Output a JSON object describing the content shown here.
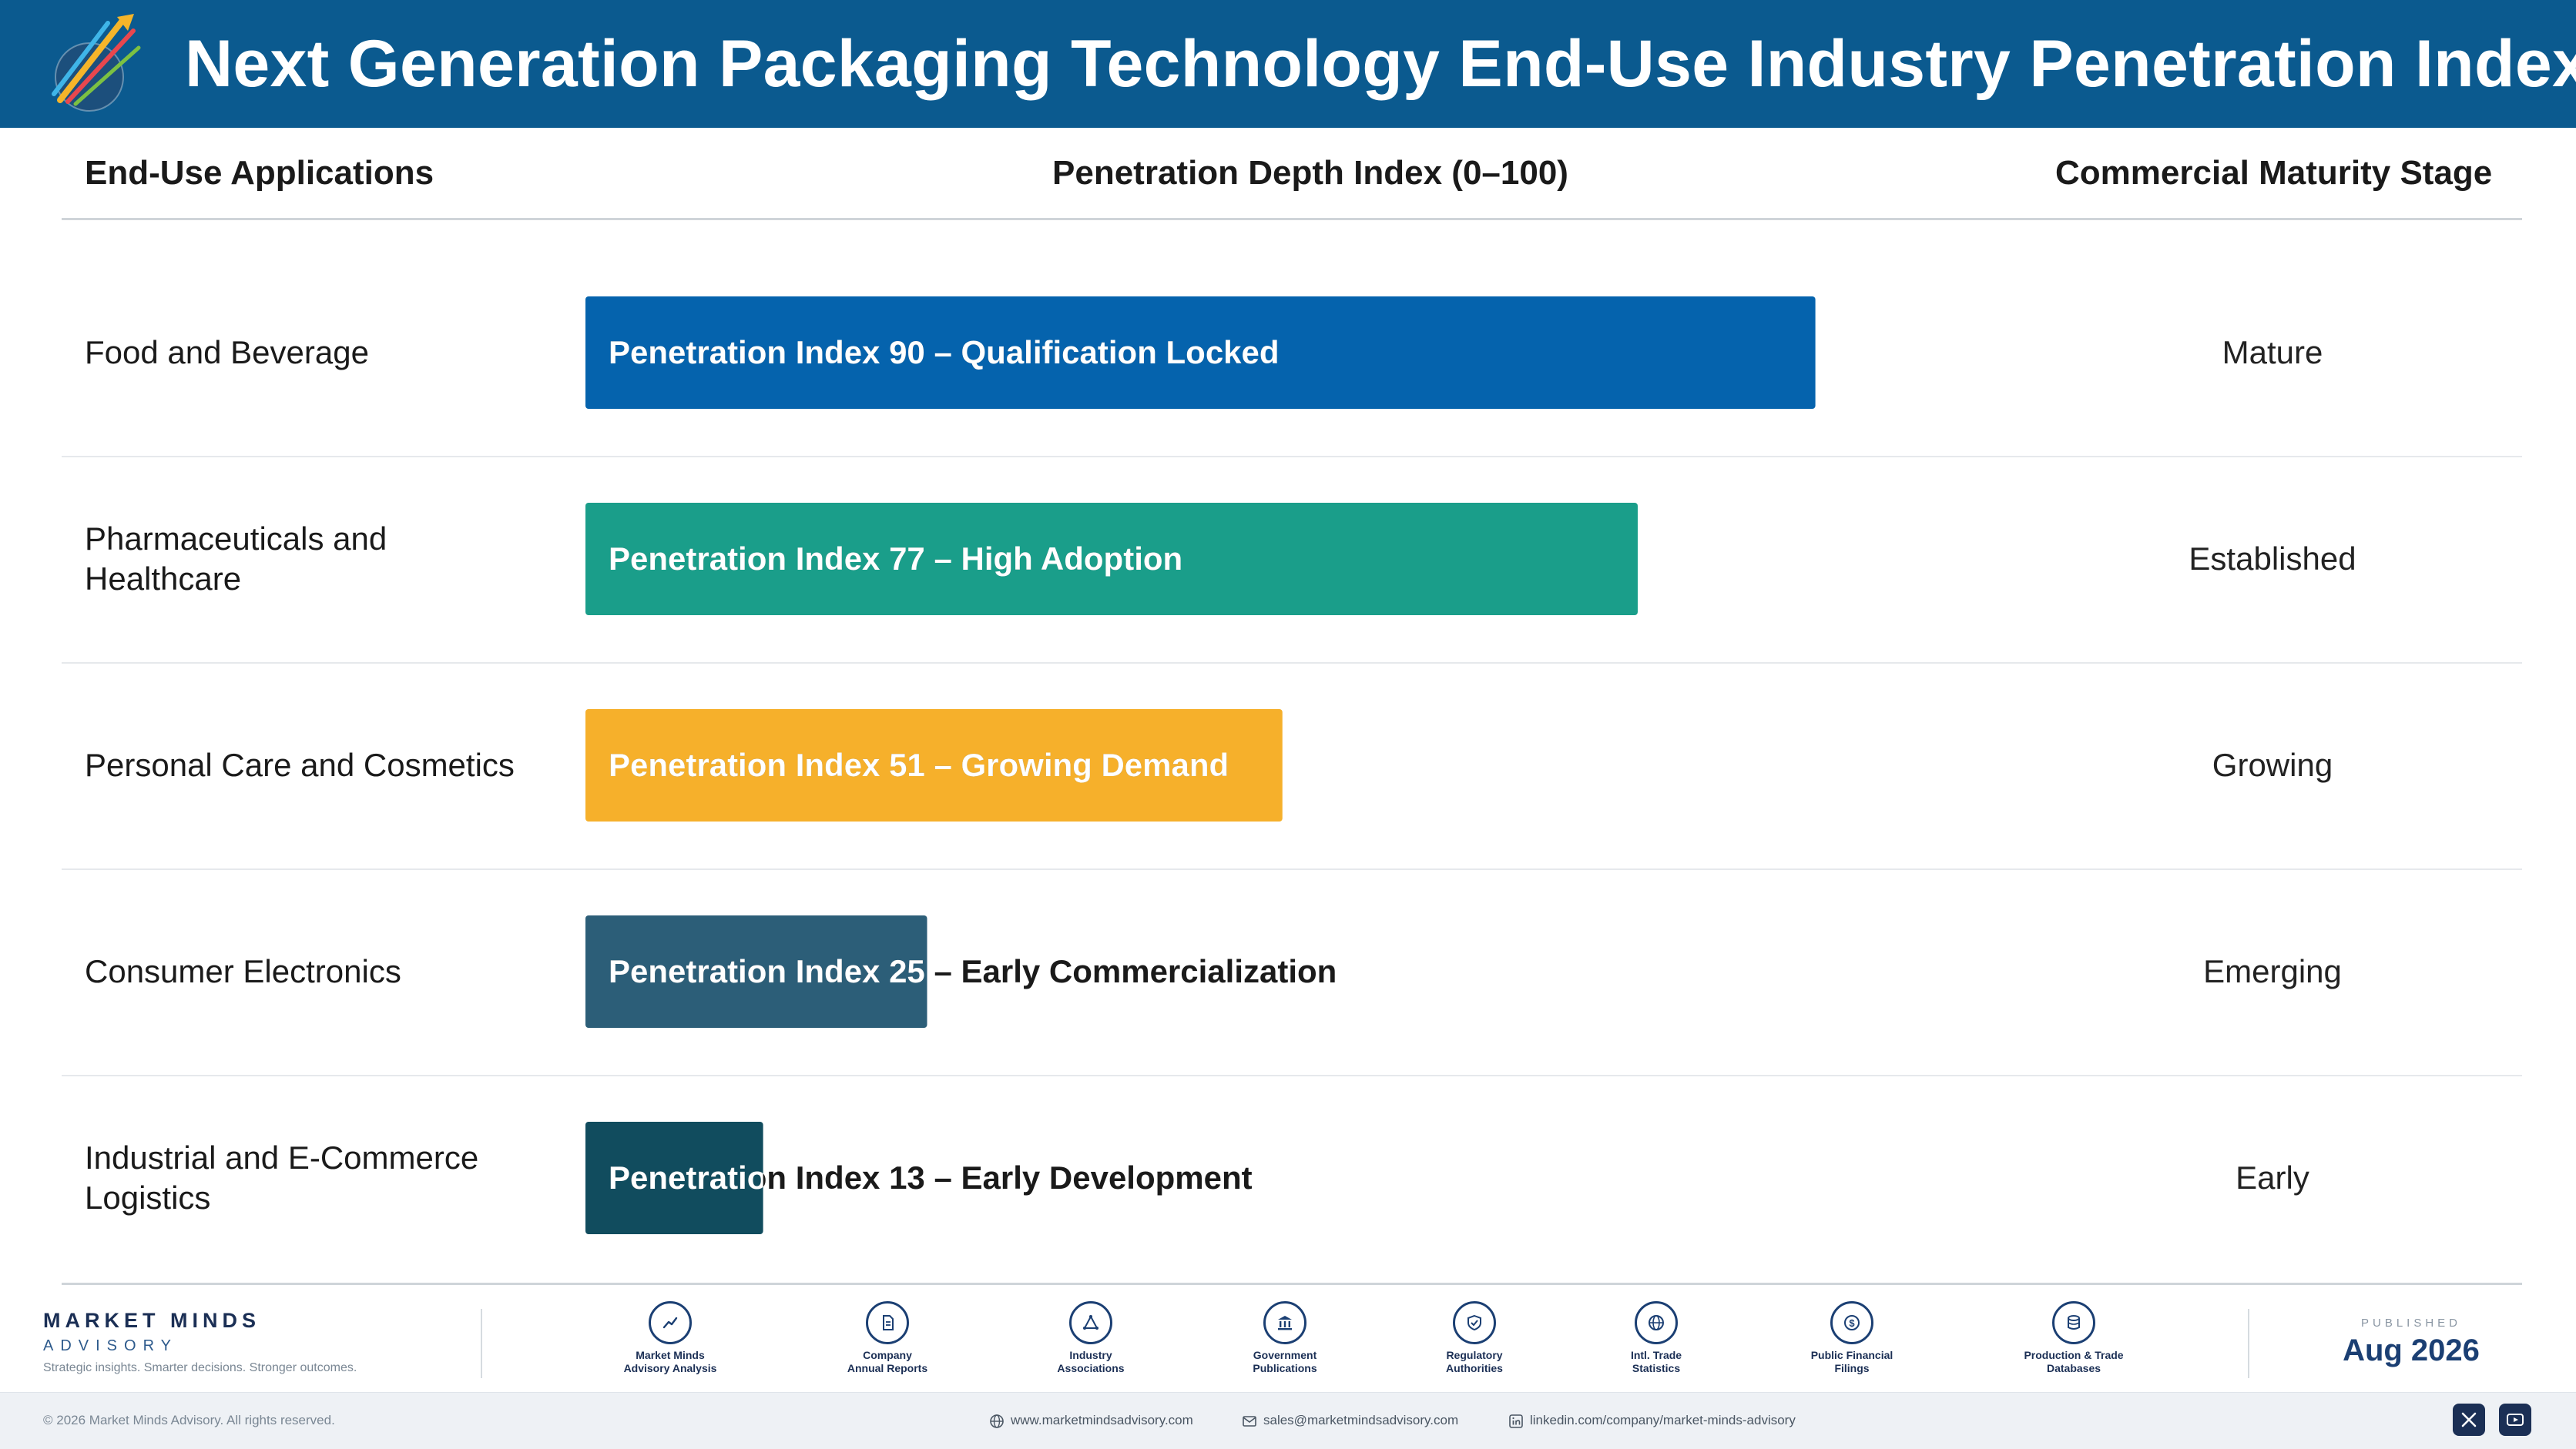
{
  "header": {
    "title": "Next Generation Packaging Technology End-Use Industry Penetration Index",
    "logo_text": "Market Minds Advisory"
  },
  "columns": {
    "applications": "End-Use Applications",
    "index": "Penetration Depth Index (0–100)",
    "stage": "Commercial Maturity Stage"
  },
  "chart_data": {
    "type": "bar",
    "orientation": "horizontal",
    "xlim": [
      0,
      100
    ],
    "categories": [
      "Food and Beverage",
      "Pharmaceuticals and Healthcare",
      "Personal Care and Cosmetics",
      "Consumer Electronics",
      "Industrial and E-Commerce Logistics"
    ],
    "values": [
      90,
      77,
      51,
      25,
      13
    ],
    "bar_labels": [
      "Penetration Index 90 – Qualification Locked",
      "Penetration Index 77 – High Adoption",
      "Penetration Index 51 – Growing Demand",
      "Penetration Index 25 – Early Commercialization",
      "Penetration Index 13 – Early Development"
    ],
    "stages": [
      "Mature",
      "Established",
      "Growing",
      "Emerging",
      "Early"
    ],
    "colors": [
      "#0563ad",
      "#1a9e8a",
      "#f6b02b",
      "#2c5e78",
      "#114c5e"
    ]
  },
  "footer": {
    "brand_name": "MARKET MINDS",
    "brand_sub": "ADVISORY",
    "tagline": "Strategic insights. Smarter decisions. Stronger outcomes.",
    "sources": [
      {
        "icon": "trend-chart-icon",
        "label": "Market Minds\nAdvisory Analysis"
      },
      {
        "icon": "document-icon",
        "label": "Company\nAnnual Reports"
      },
      {
        "icon": "network-icon",
        "label": "Industry\nAssociations"
      },
      {
        "icon": "government-building-icon",
        "label": "Government\nPublications"
      },
      {
        "icon": "shield-check-icon",
        "label": "Regulatory\nAuthorities"
      },
      {
        "icon": "globe-icon",
        "label": "Intl. Trade\nStatistics"
      },
      {
        "icon": "coin-icon",
        "label": "Public Financial\nFilings"
      },
      {
        "icon": "database-icon",
        "label": "Production & Trade\nDatabases"
      }
    ],
    "published_label": "PUBLISHED",
    "published_date": "Aug 2026",
    "copyright": "© 2026 Market Minds Advisory. All rights reserved.",
    "website": "www.marketmindsadvisory.com",
    "email": "sales@marketmindsadvisory.com",
    "linkedin": "linkedin.com/company/market-minds-advisory"
  }
}
